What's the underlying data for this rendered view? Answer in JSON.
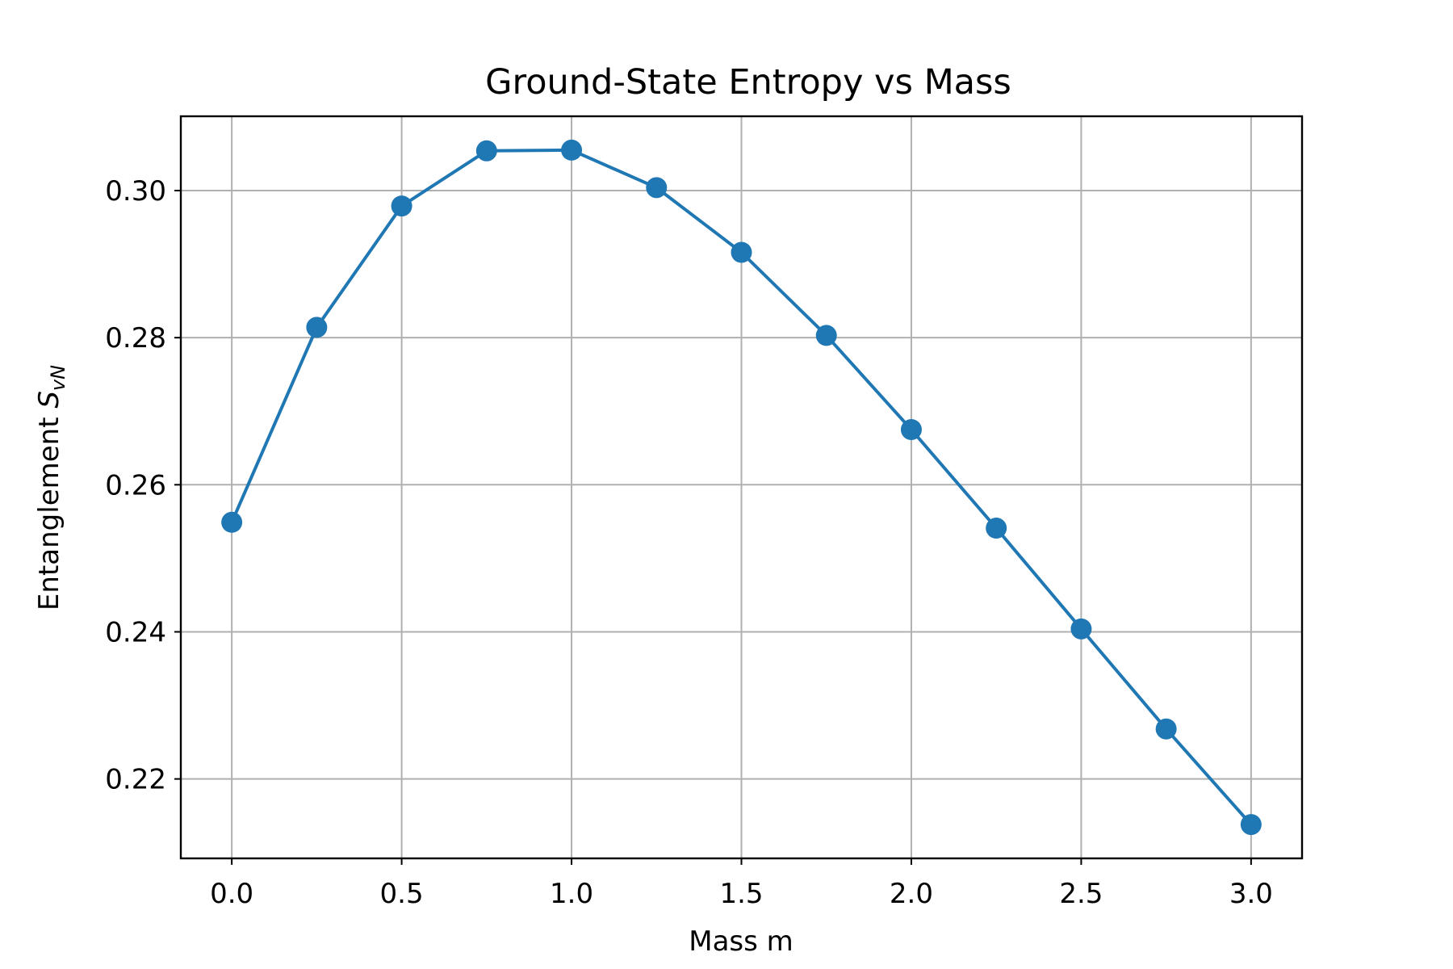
{
  "chart_data": {
    "type": "line",
    "title": "Ground-State Entropy vs Mass",
    "xlabel": "Mass m",
    "ylabel": {
      "text": "Entanglement ",
      "symbol": "S",
      "subscript": "vN"
    },
    "x": [
      0.0,
      0.25,
      0.5,
      0.75,
      1.0,
      1.25,
      1.5,
      1.75,
      2.0,
      2.25,
      2.5,
      2.75,
      3.0
    ],
    "series": [
      {
        "values": [
          0.2549,
          0.2814,
          0.2979,
          0.3054,
          0.3055,
          0.3004,
          0.2916,
          0.2803,
          0.2675,
          0.2541,
          0.2404,
          0.2268,
          0.2138
        ],
        "color": "#1f77b4",
        "marker": "circle"
      }
    ],
    "xlim": [
      -0.15,
      3.15
    ],
    "ylim": [
      0.2092,
      0.3101
    ],
    "xticks": [
      0.0,
      0.5,
      1.0,
      1.5,
      2.0,
      2.5,
      3.0
    ],
    "xtick_labels": [
      "0.0",
      "0.5",
      "1.0",
      "1.5",
      "2.0",
      "2.5",
      "3.0"
    ],
    "yticks": [
      0.22,
      0.24,
      0.26,
      0.28,
      0.3
    ],
    "ytick_labels": [
      "0.22",
      "0.24",
      "0.26",
      "0.28",
      "0.30"
    ],
    "grid": true,
    "legend": "none"
  }
}
